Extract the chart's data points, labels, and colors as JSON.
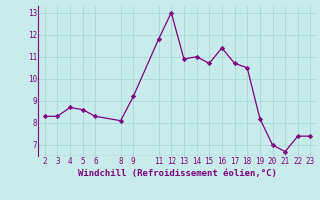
{
  "x": [
    2,
    3,
    4,
    5,
    6,
    8,
    9,
    11,
    12,
    13,
    14,
    15,
    16,
    17,
    18,
    19,
    20,
    21,
    22,
    23
  ],
  "y": [
    8.3,
    8.3,
    8.7,
    8.6,
    8.3,
    8.1,
    9.2,
    11.8,
    13.0,
    10.9,
    11.0,
    10.7,
    11.4,
    10.7,
    10.5,
    8.2,
    7.0,
    6.7,
    7.4,
    7.4
  ],
  "xticks": [
    2,
    3,
    4,
    5,
    6,
    8,
    9,
    11,
    12,
    13,
    14,
    15,
    16,
    17,
    18,
    19,
    20,
    21,
    22,
    23
  ],
  "yticks": [
    7,
    8,
    9,
    10,
    11,
    12,
    13
  ],
  "ylim": [
    6.5,
    13.3
  ],
  "xlim": [
    1.5,
    23.5
  ],
  "xlabel": "Windchill (Refroidissement éolien,°C)",
  "line_color": "#800080",
  "marker": "D",
  "marker_size": 2.2,
  "bg_color": "#c8ecec",
  "grid_color": "#a8d8d8",
  "tick_fontsize": 5.5,
  "xlabel_fontsize": 6.5
}
